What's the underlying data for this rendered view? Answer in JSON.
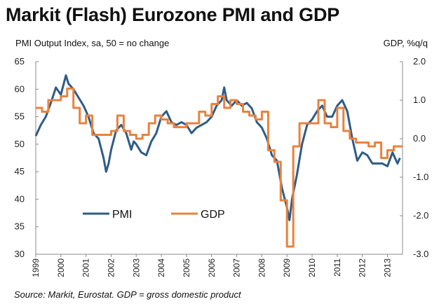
{
  "title": "Markit (Flash) Eurozone PMI and GDP",
  "left_axis_label": "PMI Output  Index, sa, 50 = no change",
  "right_axis_label": "GDP, %q/q",
  "source": "Source: Markit, Eurostat. GDP = gross domestic product",
  "colors": {
    "pmi": "#2e5c88",
    "gdp": "#e8823e",
    "axis": "#888888"
  },
  "chart_data": {
    "type": "line",
    "title": "Markit (Flash) Eurozone PMI and GDP",
    "legend_position": "lower-left",
    "grid": false,
    "x_tick_labels": [
      "1999",
      "2000",
      "2001",
      "2002",
      "2003",
      "2004",
      "2005",
      "2006",
      "2007",
      "2008",
      "2009",
      "2010",
      "2011",
      "2012",
      "2013"
    ],
    "xlim": [
      1999.0,
      2013.6
    ],
    "left_axis": {
      "label": "PMI Output  Index, sa, 50 = no change",
      "ylim": [
        30,
        65
      ],
      "ticks": [
        30,
        35,
        40,
        45,
        50,
        55,
        60,
        65
      ]
    },
    "right_axis": {
      "label": "GDP, %q/q",
      "ylim": [
        -3.0,
        2.0
      ],
      "ticks": [
        -3.0,
        -2.0,
        -1.0,
        0.0,
        1.0,
        2.0
      ],
      "tick_labels": [
        "-3.0",
        "-2.0",
        "-1.0",
        "0.0",
        "1.0",
        "2.0"
      ]
    },
    "series": [
      {
        "name": "PMI",
        "axis": "left",
        "color": "#2e5c88",
        "x": [
          1999.0,
          1999.2,
          1999.4,
          1999.6,
          1999.8,
          2000.0,
          2000.2,
          2000.3,
          2000.5,
          2000.7,
          2000.9,
          2001.1,
          2001.3,
          2001.5,
          2001.7,
          2001.8,
          2001.9,
          2002.0,
          2002.2,
          2002.4,
          2002.6,
          2002.8,
          2002.9,
          2003.0,
          2003.2,
          2003.4,
          2003.6,
          2003.8,
          2004.0,
          2004.2,
          2004.4,
          2004.6,
          2004.8,
          2005.0,
          2005.2,
          2005.4,
          2005.6,
          2005.8,
          2006.0,
          2006.2,
          2006.4,
          2006.5,
          2006.6,
          2006.8,
          2007.0,
          2007.2,
          2007.4,
          2007.6,
          2007.8,
          2008.0,
          2008.2,
          2008.4,
          2008.6,
          2008.8,
          2009.0,
          2009.1,
          2009.2,
          2009.4,
          2009.6,
          2009.8,
          2010.0,
          2010.2,
          2010.4,
          2010.6,
          2010.8,
          2011.0,
          2011.2,
          2011.4,
          2011.6,
          2011.8,
          2012.0,
          2012.2,
          2012.4,
          2012.6,
          2012.8,
          2013.0,
          2013.2,
          2013.4,
          2013.5
        ],
        "y": [
          51.5,
          53.5,
          55.0,
          57.5,
          60.3,
          59.0,
          62.5,
          61.0,
          60.0,
          58.5,
          57.0,
          55.0,
          52.0,
          51.0,
          47.5,
          45.0,
          46.5,
          49.0,
          52.5,
          53.5,
          52.0,
          49.0,
          50.5,
          50.0,
          48.5,
          48.0,
          50.5,
          52.0,
          55.0,
          56.0,
          54.0,
          53.5,
          54.0,
          53.5,
          52.0,
          53.0,
          53.5,
          54.0,
          55.0,
          57.0,
          58.0,
          60.3,
          58.0,
          57.0,
          58.0,
          57.0,
          57.5,
          56.5,
          54.0,
          53.0,
          51.0,
          48.0,
          47.0,
          42.0,
          38.5,
          36.2,
          40.0,
          44.5,
          50.0,
          53.5,
          54.5,
          56.0,
          57.0,
          55.0,
          55.0,
          57.0,
          58.0,
          56.0,
          51.0,
          47.0,
          48.5,
          48.0,
          46.5,
          46.5,
          46.5,
          46.0,
          48.5,
          46.5,
          47.5
        ]
      },
      {
        "name": "GDP",
        "axis": "right",
        "color": "#e8823e",
        "x": [
          1999.0,
          1999.25,
          1999.5,
          1999.75,
          2000.0,
          2000.25,
          2000.5,
          2000.75,
          2001.0,
          2001.25,
          2001.5,
          2001.75,
          2002.0,
          2002.25,
          2002.5,
          2002.75,
          2003.0,
          2003.25,
          2003.5,
          2003.75,
          2004.0,
          2004.25,
          2004.5,
          2004.75,
          2005.0,
          2005.25,
          2005.5,
          2005.75,
          2006.0,
          2006.25,
          2006.5,
          2006.75,
          2007.0,
          2007.25,
          2007.5,
          2007.75,
          2008.0,
          2008.25,
          2008.5,
          2008.75,
          2009.0,
          2009.25,
          2009.5,
          2009.75,
          2010.0,
          2010.25,
          2010.5,
          2010.75,
          2011.0,
          2011.25,
          2011.5,
          2011.75,
          2012.0,
          2012.25,
          2012.5,
          2012.75,
          2013.0,
          2013.25,
          2013.5
        ],
        "y": [
          0.8,
          0.7,
          1.0,
          1.0,
          1.1,
          1.3,
          0.8,
          0.4,
          0.6,
          0.1,
          0.1,
          0.1,
          0.2,
          0.6,
          0.2,
          0.1,
          0.0,
          0.1,
          0.4,
          0.6,
          0.5,
          0.4,
          0.3,
          0.3,
          0.4,
          0.4,
          0.7,
          0.6,
          0.9,
          1.1,
          0.8,
          1.0,
          0.9,
          0.7,
          0.6,
          0.5,
          0.7,
          -0.3,
          -0.6,
          -1.6,
          -2.8,
          -0.2,
          0.4,
          0.4,
          0.4,
          1.0,
          0.4,
          0.3,
          0.8,
          0.2,
          0.0,
          -0.1,
          -0.1,
          -0.2,
          -0.1,
          -0.5,
          -0.3,
          -0.2,
          -0.2
        ]
      }
    ]
  }
}
